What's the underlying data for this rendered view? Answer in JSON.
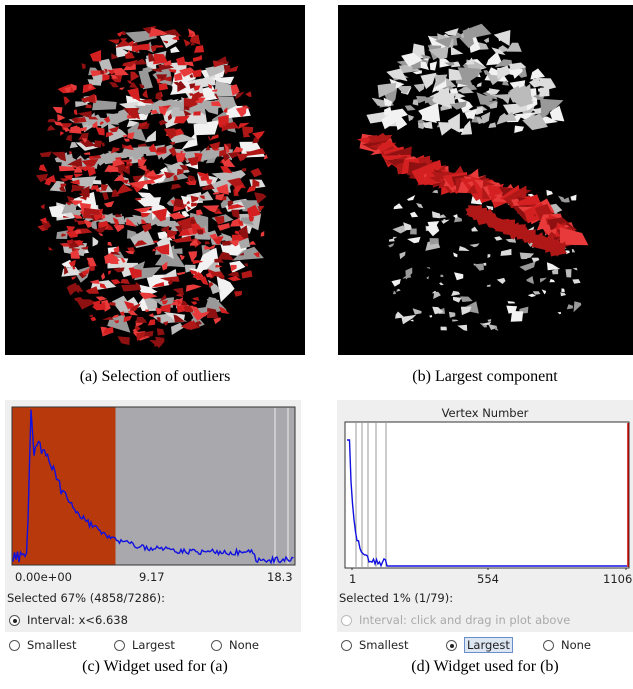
{
  "images": [
    {
      "caption": "(a) Selection of outliers"
    },
    {
      "caption": "(b) Largest component"
    }
  ],
  "widgets": [
    {
      "caption": "(c) Widget used for (a)",
      "axis_labels": [
        "0.00e+00",
        "9.17",
        "18.3"
      ],
      "status": "Selected 67% (4858/7286):",
      "interval": "Interval: x<6.638",
      "options": [
        "Smallest",
        "Largest",
        "None"
      ]
    },
    {
      "caption": "(d) Widget used for (b)",
      "title": "Vertex Number",
      "axis_labels": [
        "1",
        "554",
        "1106"
      ],
      "status": "Selected 1% (1/79):",
      "interval": "Interval: click and drag in plot above",
      "options": [
        "Smallest",
        "Largest",
        "None"
      ]
    }
  ]
}
